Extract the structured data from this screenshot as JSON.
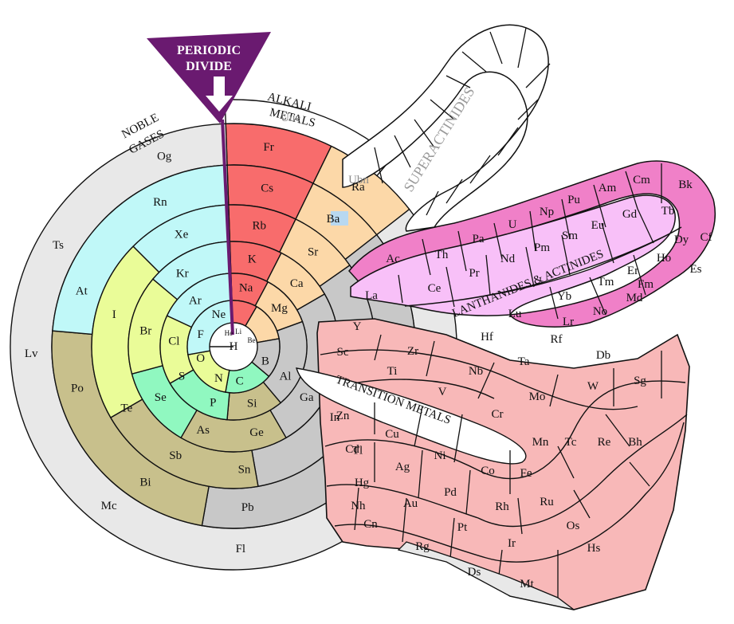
{
  "colors": {
    "noble_gases": "#c0f8f8",
    "alkali_metals": "#f86c6c",
    "alkaline_earth": "#fcd8a8",
    "halogens": "#eafc98",
    "nonmetals": "#90f8c0",
    "metalloids": "#c8c08c",
    "post_transition": "#c8c8c8",
    "transition": "#f8b8b8",
    "lanthanides": "#f8c0f8",
    "actinides": "#f080c8",
    "unknown": "#e8e8e8",
    "divide": "#6a1a70",
    "superactinide_text": "#9a9a9a",
    "radium_highlight": "#b8d8f0"
  },
  "banner": {
    "line1": "PERIODIC",
    "line2": "DIVIDE",
    "icon": "down-arrow-icon"
  },
  "headers": {
    "noble_line1": "NOBLE",
    "noble_line2": "GASES",
    "alkali_line1": "ALKALI",
    "alkali_line2": "METALS",
    "superactinides": "SUPERACTINIDES",
    "lanth_act": "LANTHANIDES & ACTINIDES",
    "transition": "TRANSITION METALS"
  },
  "elements": {
    "H": "H",
    "He": "He",
    "Li": "Li",
    "Be": "Be",
    "B": "B",
    "C": "C",
    "N": "N",
    "O": "O",
    "F": "F",
    "Ne": "Ne",
    "Na": "Na",
    "Mg": "Mg",
    "Al": "Al",
    "Si": "Si",
    "P": "P",
    "S": "S",
    "Cl": "Cl",
    "Ar": "Ar",
    "K": "K",
    "Ca": "Ca",
    "Ga": "Ga",
    "Ge": "Ge",
    "As": "As",
    "Se": "Se",
    "Br": "Br",
    "Kr": "Kr",
    "Rb": "Rb",
    "Sr": "Sr",
    "In": "In",
    "Sn": "Sn",
    "Sb": "Sb",
    "Te": "Te",
    "I": "I",
    "Xe": "Xe",
    "Cs": "Cs",
    "Ba": "Ba",
    "Tl": "Tl",
    "Pb": "Pb",
    "Bi": "Bi",
    "Po": "Po",
    "At": "At",
    "Rn": "Rn",
    "Fr": "Fr",
    "Ra": "Ra",
    "Nh": "Nh",
    "Fl": "Fl",
    "Mc": "Mc",
    "Lv": "Lv",
    "Ts": "Ts",
    "Og": "Og",
    "Uue": "Uue",
    "Ubn": "Ubn",
    "Sc": "Sc",
    "Ti": "Ti",
    "V": "V",
    "Cr": "Cr",
    "Mn": "Mn",
    "Fe": "Fe",
    "Co": "Co",
    "Ni": "Ni",
    "Cu": "Cu",
    "Zn": "Zn",
    "Y": "Y",
    "Zr": "Zr",
    "Nb": "Nb",
    "Mo": "Mo",
    "Tc": "Tc",
    "Ru": "Ru",
    "Rh": "Rh",
    "Pd": "Pd",
    "Ag": "Ag",
    "Cd": "Cd",
    "Hf": "Hf",
    "Ta": "Ta",
    "W": "W",
    "Re": "Re",
    "Os": "Os",
    "Ir": "Ir",
    "Pt": "Pt",
    "Au": "Au",
    "Hg": "Hg",
    "Rf": "Rf",
    "Db": "Db",
    "Sg": "Sg",
    "Bh": "Bh",
    "Hs": "Hs",
    "Mt": "Mt",
    "Ds": "Ds",
    "Rg": "Rg",
    "Cn": "Cn",
    "La": "La",
    "Ce": "Ce",
    "Pr": "Pr",
    "Nd": "Nd",
    "Pm": "Pm",
    "Sm": "Sm",
    "Eu": "Eu",
    "Gd": "Gd",
    "Tb": "Tb",
    "Dy": "Dy",
    "Ho": "Ho",
    "Er": "Er",
    "Tm": "Tm",
    "Yb": "Yb",
    "Lu": "Lu",
    "Ac": "Ac",
    "Th": "Th",
    "Pa": "Pa",
    "U": "U",
    "Np": "Np",
    "Pu": "Pu",
    "Am": "Am",
    "Cm": "Cm",
    "Bk": "Bk",
    "Cf": "Cf",
    "Es": "Es",
    "Fm": "Fm",
    "Md": "Md",
    "No": "No",
    "Lr": "Lr"
  }
}
